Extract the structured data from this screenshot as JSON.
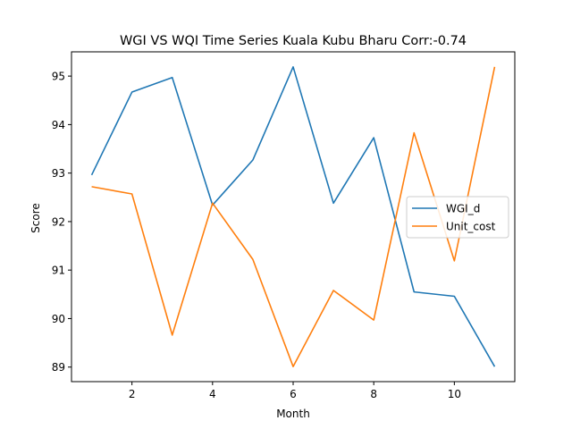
{
  "chart_data": {
    "type": "line",
    "title": "WGI VS WQI Time Series Kuala Kubu Bharu Corr:-0.74",
    "xlabel": "Month",
    "ylabel": "Score",
    "x": [
      1,
      2,
      3,
      4,
      5,
      6,
      7,
      8,
      9,
      10,
      11
    ],
    "xlim": [
      0.5,
      11.5
    ],
    "ylim": [
      88.7,
      95.5
    ],
    "xticks": [
      2,
      4,
      6,
      8,
      10
    ],
    "yticks": [
      89,
      90,
      91,
      92,
      93,
      94,
      95
    ],
    "grid": false,
    "legend": "center-right",
    "series": [
      {
        "name": "WGI_d",
        "color": "#1f77b4",
        "values": [
          92.96,
          94.67,
          94.97,
          92.34,
          93.27,
          95.19,
          92.38,
          93.73,
          90.55,
          90.46,
          89.01
        ]
      },
      {
        "name": "Unit_cost",
        "color": "#ff7f0e",
        "values": [
          92.72,
          92.57,
          89.66,
          92.38,
          91.22,
          89.01,
          90.58,
          89.97,
          93.83,
          91.19,
          95.19
        ]
      }
    ]
  }
}
